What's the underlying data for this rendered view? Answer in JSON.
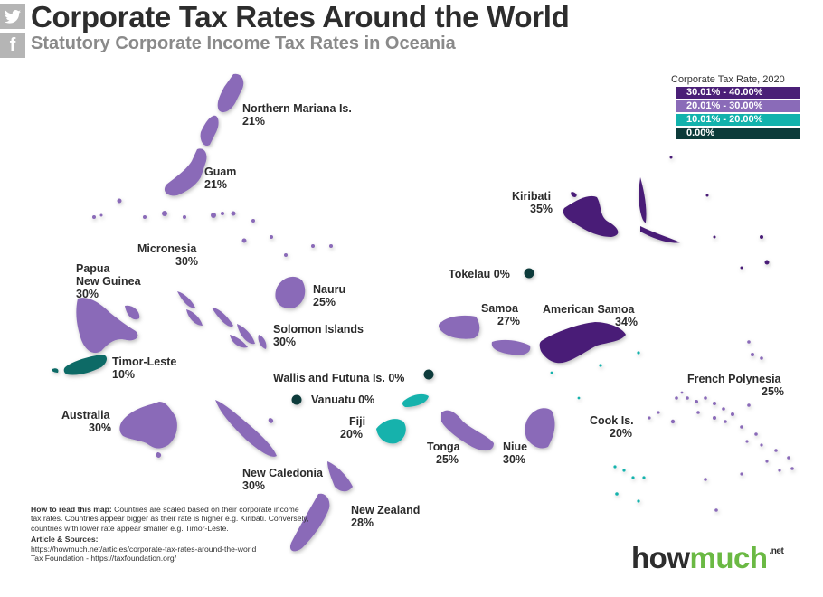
{
  "header": {
    "title": "Corporate Tax Rates Around the World",
    "subtitle": "Statutory Corporate Income Tax Rates in Oceania"
  },
  "social": {
    "twitter_icon": "twitter-icon",
    "facebook_icon": "facebook-icon",
    "facebook_glyph": "f"
  },
  "legend": {
    "title": "Corporate Tax Rate, 2020",
    "items": [
      {
        "label": "30.01% - 40.00%",
        "color": "#4a1f77"
      },
      {
        "label": "20.01% - 30.00%",
        "color": "#8a6bb8"
      },
      {
        "label": "10.01% - 20.00%",
        "color": "#12b2ac"
      },
      {
        "label": "0.00%",
        "color": "#0c3b3a"
      }
    ]
  },
  "countries": [
    {
      "name": "Northern Mariana Is.",
      "rate": "21%"
    },
    {
      "name": "Guam",
      "rate": "21%"
    },
    {
      "name": "Micronesia",
      "rate": "30%"
    },
    {
      "name": "Papua\nNew Guinea",
      "rate": "30%"
    },
    {
      "name": "Nauru",
      "rate": "25%"
    },
    {
      "name": "Solomon Islands",
      "rate": "30%"
    },
    {
      "name": "Timor-Leste",
      "rate": "10%"
    },
    {
      "name": "Wallis and Futuna Is. 0%",
      "rate": ""
    },
    {
      "name": "Vanuatu 0%",
      "rate": ""
    },
    {
      "name": "Australia",
      "rate": "30%"
    },
    {
      "name": "Fiji",
      "rate": "20%"
    },
    {
      "name": "New Caledonia",
      "rate": "30%"
    },
    {
      "name": "New Zealand",
      "rate": "28%"
    },
    {
      "name": "Kiribati",
      "rate": "35%"
    },
    {
      "name": "Tokelau 0%",
      "rate": ""
    },
    {
      "name": "Samoa",
      "rate": "27%"
    },
    {
      "name": "American Samoa",
      "rate": "34%"
    },
    {
      "name": "Tonga",
      "rate": "25%"
    },
    {
      "name": "Niue",
      "rate": "30%"
    },
    {
      "name": "Cook Is.",
      "rate": "20%"
    },
    {
      "name": "French Polynesia",
      "rate": "25%"
    }
  ],
  "note": {
    "how_title": "How to read this map:",
    "how_text": "Countries are scaled based on their corporate income tax rates. Countries appear bigger as their rate is higher e.g. Kiribati. Conversely, countries with lower rate appear smaller e.g. Timor-Leste.",
    "sources_title": "Article & Sources:",
    "source1": "https://howmuch.net/articles/corporate-tax-rates-around-the-world",
    "source2": "Tax Foundation - https://taxfoundation.org/"
  },
  "brand": {
    "how": "how",
    "much": "much",
    "tld": ".net"
  }
}
